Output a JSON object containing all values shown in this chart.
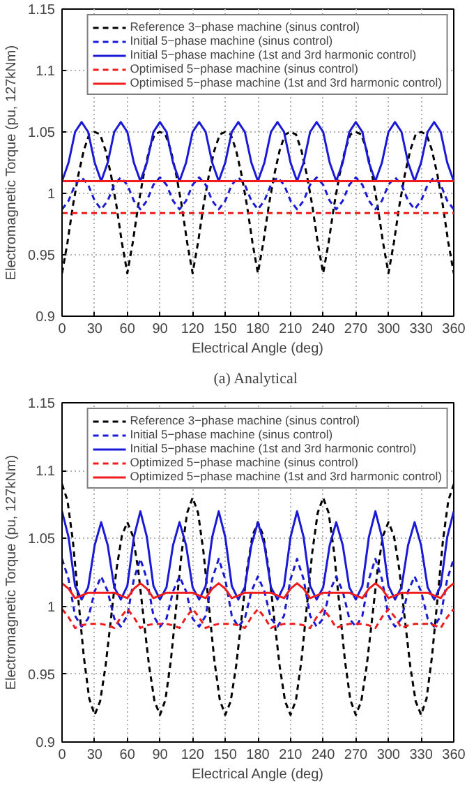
{
  "chart_data": [
    {
      "type": "line",
      "xlabel": "Electrical Angle (deg)",
      "ylabel": "Electromagnetic Torque (pu, 127kNm)",
      "annotations": [
        "(a)  Analytical"
      ],
      "xlim": [
        0,
        360
      ],
      "ylim": [
        0.9,
        1.15
      ],
      "xticks": [
        0,
        30,
        60,
        90,
        120,
        150,
        180,
        210,
        240,
        270,
        300,
        330,
        360
      ],
      "yticks": [
        0.9,
        0.95,
        1,
        1.05,
        1.1,
        1.15
      ],
      "grid": true,
      "legend": "top right",
      "series": [
        {
          "name": "Reference 3−phase machine (sinus control)",
          "color": "#000000",
          "line_style": "dashed",
          "x": [
            0,
            5,
            10,
            15,
            20,
            25,
            30,
            35,
            40,
            45,
            50,
            55,
            60,
            65,
            70,
            75,
            80,
            85,
            90,
            95,
            100,
            105,
            110,
            115,
            120,
            125,
            130,
            135,
            140,
            145,
            150,
            155,
            160,
            165,
            170,
            175,
            180,
            185,
            190,
            195,
            200,
            205,
            210,
            215,
            220,
            225,
            230,
            235,
            240,
            245,
            250,
            255,
            260,
            265,
            270,
            275,
            280,
            285,
            290,
            295,
            300,
            305,
            310,
            315,
            320,
            325,
            330,
            335,
            340,
            345,
            350,
            355,
            360
          ],
          "values": [
            0.935,
            0.96,
            0.99,
            1.015,
            1.035,
            1.048,
            1.05,
            1.048,
            1.035,
            1.015,
            0.99,
            0.96,
            0.935,
            0.96,
            0.99,
            1.015,
            1.035,
            1.048,
            1.05,
            1.048,
            1.035,
            1.015,
            0.99,
            0.96,
            0.935,
            0.96,
            0.99,
            1.015,
            1.035,
            1.048,
            1.05,
            1.048,
            1.035,
            1.015,
            0.99,
            0.96,
            0.935,
            0.96,
            0.99,
            1.015,
            1.035,
            1.048,
            1.05,
            1.048,
            1.035,
            1.015,
            0.99,
            0.96,
            0.935,
            0.96,
            0.99,
            1.015,
            1.035,
            1.048,
            1.05,
            1.048,
            1.035,
            1.015,
            0.99,
            0.96,
            0.935,
            0.96,
            0.99,
            1.015,
            1.035,
            1.048,
            1.05,
            1.048,
            1.035,
            1.015,
            0.99,
            0.96,
            0.935
          ]
        },
        {
          "name": "Initial 5−phase machine (sinus control)",
          "color": "#1a1ad6",
          "line_style": "dashed",
          "x": [
            0,
            6,
            12,
            18,
            24,
            30,
            36,
            42,
            48,
            54,
            60,
            66,
            72,
            78,
            84,
            90,
            96,
            102,
            108,
            114,
            120,
            126,
            132,
            138,
            144,
            150,
            156,
            162,
            168,
            174,
            180,
            186,
            192,
            198,
            204,
            210,
            216,
            222,
            228,
            234,
            240,
            246,
            252,
            258,
            264,
            270,
            276,
            282,
            288,
            294,
            300,
            306,
            312,
            318,
            324,
            330,
            336,
            342,
            348,
            354,
            360
          ],
          "values": [
            0.987,
            0.994,
            1.007,
            1.013,
            1.007,
            0.994,
            0.987,
            0.994,
            1.007,
            1.013,
            1.007,
            0.994,
            0.987,
            0.994,
            1.007,
            1.013,
            1.007,
            0.994,
            0.987,
            0.994,
            1.007,
            1.013,
            1.007,
            0.994,
            0.987,
            0.994,
            1.007,
            1.013,
            1.007,
            0.994,
            0.987,
            0.994,
            1.007,
            1.013,
            1.007,
            0.994,
            0.987,
            0.994,
            1.007,
            1.013,
            1.007,
            0.994,
            0.987,
            0.994,
            1.007,
            1.013,
            1.007,
            0.994,
            0.987,
            0.994,
            1.007,
            1.013,
            1.007,
            0.994,
            0.987,
            0.994,
            1.007,
            1.013,
            1.007,
            0.994,
            0.987
          ]
        },
        {
          "name": "Initial 5−phase machine (1st and 3rd harmonic control)",
          "color": "#1a1ad6",
          "line_style": "solid",
          "x": [
            0,
            6,
            12,
            18,
            24,
            30,
            36,
            42,
            48,
            54,
            60,
            66,
            72,
            78,
            84,
            90,
            96,
            102,
            108,
            114,
            120,
            126,
            132,
            138,
            144,
            150,
            156,
            162,
            168,
            174,
            180,
            186,
            192,
            198,
            204,
            210,
            216,
            222,
            228,
            234,
            240,
            246,
            252,
            258,
            264,
            270,
            276,
            282,
            288,
            294,
            300,
            306,
            312,
            318,
            324,
            330,
            336,
            342,
            348,
            354,
            360
          ],
          "values": [
            1.01,
            1.025,
            1.05,
            1.058,
            1.05,
            1.025,
            1.01,
            1.025,
            1.05,
            1.058,
            1.05,
            1.025,
            1.01,
            1.025,
            1.05,
            1.058,
            1.05,
            1.025,
            1.01,
            1.025,
            1.05,
            1.058,
            1.05,
            1.025,
            1.01,
            1.025,
            1.05,
            1.058,
            1.05,
            1.025,
            1.01,
            1.025,
            1.05,
            1.058,
            1.05,
            1.025,
            1.01,
            1.025,
            1.05,
            1.058,
            1.05,
            1.025,
            1.01,
            1.025,
            1.05,
            1.058,
            1.05,
            1.025,
            1.01,
            1.025,
            1.05,
            1.058,
            1.05,
            1.025,
            1.01,
            1.025,
            1.05,
            1.058,
            1.05,
            1.025,
            1.01
          ]
        },
        {
          "name": "Optimised 5−phase machine (sinus control)",
          "color": "#ee1c1c",
          "line_style": "dashed",
          "x": [
            0,
            360
          ],
          "values": [
            0.984,
            0.984
          ]
        },
        {
          "name": "Optimised 5−phase machine (1st and 3rd harmonic control)",
          "color": "#ee1c1c",
          "line_style": "solid",
          "x": [
            0,
            360
          ],
          "values": [
            1.01,
            1.01
          ]
        }
      ]
    },
    {
      "type": "line",
      "xlabel": "Electrical Angle (deg)",
      "ylabel": "Electromagnetic Torque (pu, 127kNm)",
      "xlim": [
        0,
        360
      ],
      "ylim": [
        0.9,
        1.15
      ],
      "xticks": [
        0,
        30,
        60,
        90,
        120,
        150,
        180,
        210,
        240,
        270,
        300,
        330,
        360
      ],
      "yticks": [
        0.9,
        0.95,
        1,
        1.05,
        1.1,
        1.15
      ],
      "grid": true,
      "legend": "top right",
      "series": [
        {
          "name": "Reference 3−phase machine (sinus control)",
          "color": "#000000",
          "line_style": "dashed",
          "x": [
            0,
            5,
            10,
            15,
            20,
            25,
            30,
            35,
            40,
            45,
            50,
            55,
            60,
            65,
            70,
            75,
            80,
            85,
            90,
            95,
            100,
            105,
            110,
            115,
            120,
            125,
            130,
            135,
            140,
            145,
            150,
            155,
            160,
            165,
            170,
            175,
            180,
            185,
            190,
            195,
            200,
            205,
            210,
            215,
            220,
            225,
            230,
            235,
            240,
            245,
            250,
            255,
            260,
            265,
            270,
            275,
            280,
            285,
            290,
            295,
            300,
            305,
            310,
            315,
            320,
            325,
            330,
            335,
            340,
            345,
            350,
            355,
            360
          ],
          "values": [
            1.09,
            1.078,
            1.048,
            1.005,
            0.963,
            0.932,
            0.92,
            0.93,
            0.956,
            0.991,
            1.027,
            1.052,
            1.062,
            1.052,
            1.027,
            0.991,
            0.956,
            0.93,
            0.92,
            0.931,
            0.96,
            1.0,
            1.04,
            1.069,
            1.08,
            1.069,
            1.04,
            1.0,
            0.96,
            0.931,
            0.92,
            0.93,
            0.956,
            0.991,
            1.027,
            1.052,
            1.062,
            1.052,
            1.027,
            0.991,
            0.956,
            0.93,
            0.92,
            0.931,
            0.96,
            1.0,
            1.04,
            1.069,
            1.08,
            1.069,
            1.04,
            1.0,
            0.96,
            0.931,
            0.92,
            0.93,
            0.956,
            0.991,
            1.027,
            1.052,
            1.062,
            1.052,
            1.027,
            0.991,
            0.956,
            0.93,
            0.92,
            0.932,
            0.963,
            1.005,
            1.048,
            1.078,
            1.09
          ]
        },
        {
          "name": "Initial 5−phase machine (sinus control)",
          "color": "#1a1ad6",
          "line_style": "dashed",
          "x": [
            0,
            6,
            12,
            18,
            24,
            30,
            36,
            42,
            48,
            54,
            60,
            66,
            72,
            78,
            84,
            90,
            96,
            102,
            108,
            114,
            120,
            126,
            132,
            138,
            144,
            150,
            156,
            162,
            168,
            174,
            180,
            186,
            192,
            198,
            204,
            210,
            216,
            222,
            228,
            234,
            240,
            246,
            252,
            258,
            264,
            270,
            276,
            282,
            288,
            294,
            300,
            306,
            312,
            318,
            324,
            330,
            336,
            342,
            348,
            354,
            360
          ],
          "values": [
            1.035,
            1.02,
            0.993,
            0.985,
            0.991,
            1.011,
            1.022,
            1.011,
            0.991,
            0.985,
            0.993,
            1.02,
            1.035,
            1.02,
            0.993,
            0.985,
            0.991,
            1.011,
            1.022,
            1.011,
            0.991,
            0.985,
            0.993,
            1.02,
            1.035,
            1.02,
            0.993,
            0.985,
            0.991,
            1.011,
            1.022,
            1.011,
            0.991,
            0.985,
            0.993,
            1.02,
            1.035,
            1.02,
            0.993,
            0.985,
            0.991,
            1.011,
            1.022,
            1.011,
            0.991,
            0.985,
            0.993,
            1.02,
            1.035,
            1.02,
            0.993,
            0.985,
            0.991,
            1.011,
            1.022,
            1.011,
            0.991,
            0.985,
            0.993,
            1.02,
            1.035
          ]
        },
        {
          "name": "Initial 5−phase machine (1st and 3rd harmonic control)",
          "color": "#1a1ad6",
          "line_style": "solid",
          "x": [
            0,
            6,
            12,
            18,
            24,
            30,
            36,
            42,
            48,
            54,
            60,
            66,
            72,
            78,
            84,
            90,
            96,
            102,
            108,
            114,
            120,
            126,
            132,
            138,
            144,
            150,
            156,
            162,
            168,
            174,
            180,
            186,
            192,
            198,
            204,
            210,
            216,
            222,
            228,
            234,
            240,
            246,
            252,
            258,
            264,
            270,
            276,
            282,
            288,
            294,
            300,
            306,
            312,
            318,
            324,
            330,
            336,
            342,
            348,
            354,
            360
          ],
          "values": [
            1.07,
            1.051,
            1.015,
            1.005,
            1.014,
            1.045,
            1.062,
            1.045,
            1.014,
            1.005,
            1.015,
            1.051,
            1.07,
            1.051,
            1.015,
            1.005,
            1.014,
            1.045,
            1.062,
            1.045,
            1.014,
            1.005,
            1.015,
            1.051,
            1.07,
            1.051,
            1.015,
            1.005,
            1.014,
            1.045,
            1.062,
            1.045,
            1.014,
            1.005,
            1.015,
            1.051,
            1.07,
            1.051,
            1.015,
            1.005,
            1.014,
            1.045,
            1.062,
            1.045,
            1.014,
            1.005,
            1.015,
            1.051,
            1.07,
            1.051,
            1.015,
            1.005,
            1.014,
            1.045,
            1.062,
            1.045,
            1.014,
            1.005,
            1.015,
            1.051,
            1.07
          ]
        },
        {
          "name": "Optimized 5−phase machine (sinus control)",
          "color": "#ee1c1c",
          "line_style": "dashed",
          "x": [
            0,
            6,
            12,
            18,
            24,
            30,
            36,
            42,
            48,
            54,
            60,
            66,
            72,
            78,
            84,
            90,
            96,
            102,
            108,
            114,
            120,
            126,
            132,
            138,
            144,
            150,
            156,
            162,
            168,
            174,
            180,
            186,
            192,
            198,
            204,
            210,
            216,
            222,
            228,
            234,
            240,
            246,
            252,
            258,
            264,
            270,
            276,
            282,
            288,
            294,
            300,
            306,
            312,
            318,
            324,
            330,
            336,
            342,
            348,
            354,
            360
          ],
          "values": [
            0.998,
            0.992,
            0.984,
            0.986,
            0.987,
            0.987,
            0.987,
            0.986,
            0.984,
            0.992,
            0.998,
            0.992,
            0.984,
            0.986,
            0.987,
            0.987,
            0.987,
            0.986,
            0.984,
            0.992,
            0.998,
            0.992,
            0.984,
            0.986,
            0.987,
            0.987,
            0.987,
            0.986,
            0.984,
            0.992,
            0.998,
            0.992,
            0.984,
            0.986,
            0.987,
            0.987,
            0.987,
            0.986,
            0.984,
            0.992,
            0.998,
            0.992,
            0.984,
            0.986,
            0.987,
            0.987,
            0.987,
            0.986,
            0.984,
            0.992,
            0.998,
            0.992,
            0.984,
            0.986,
            0.987,
            0.987,
            0.987,
            0.986,
            0.984,
            0.992,
            0.998
          ]
        },
        {
          "name": "Optimized 5−phase machine (1st and 3rd harmonic control)",
          "color": "#ee1c1c",
          "line_style": "solid",
          "x": [
            0,
            6,
            12,
            18,
            24,
            30,
            36,
            42,
            48,
            54,
            60,
            66,
            72,
            78,
            84,
            90,
            96,
            102,
            108,
            114,
            120,
            126,
            132,
            138,
            144,
            150,
            156,
            162,
            168,
            174,
            180,
            186,
            192,
            198,
            204,
            210,
            216,
            222,
            228,
            234,
            240,
            246,
            252,
            258,
            264,
            270,
            276,
            282,
            288,
            294,
            300,
            306,
            312,
            318,
            324,
            330,
            336,
            342,
            348,
            354,
            360
          ],
          "values": [
            1.017,
            1.013,
            1.006,
            1.008,
            1.01,
            1.01,
            1.01,
            1.01,
            1.01,
            1.008,
            1.006,
            1.013,
            1.017,
            1.013,
            1.006,
            1.008,
            1.01,
            1.01,
            1.01,
            1.01,
            1.01,
            1.008,
            1.006,
            1.013,
            1.017,
            1.013,
            1.006,
            1.008,
            1.01,
            1.01,
            1.01,
            1.01,
            1.01,
            1.008,
            1.006,
            1.013,
            1.017,
            1.013,
            1.006,
            1.008,
            1.01,
            1.01,
            1.01,
            1.01,
            1.01,
            1.008,
            1.006,
            1.013,
            1.017,
            1.013,
            1.006,
            1.008,
            1.01,
            1.01,
            1.01,
            1.01,
            1.01,
            1.008,
            1.006,
            1.013,
            1.017
          ]
        }
      ]
    }
  ]
}
